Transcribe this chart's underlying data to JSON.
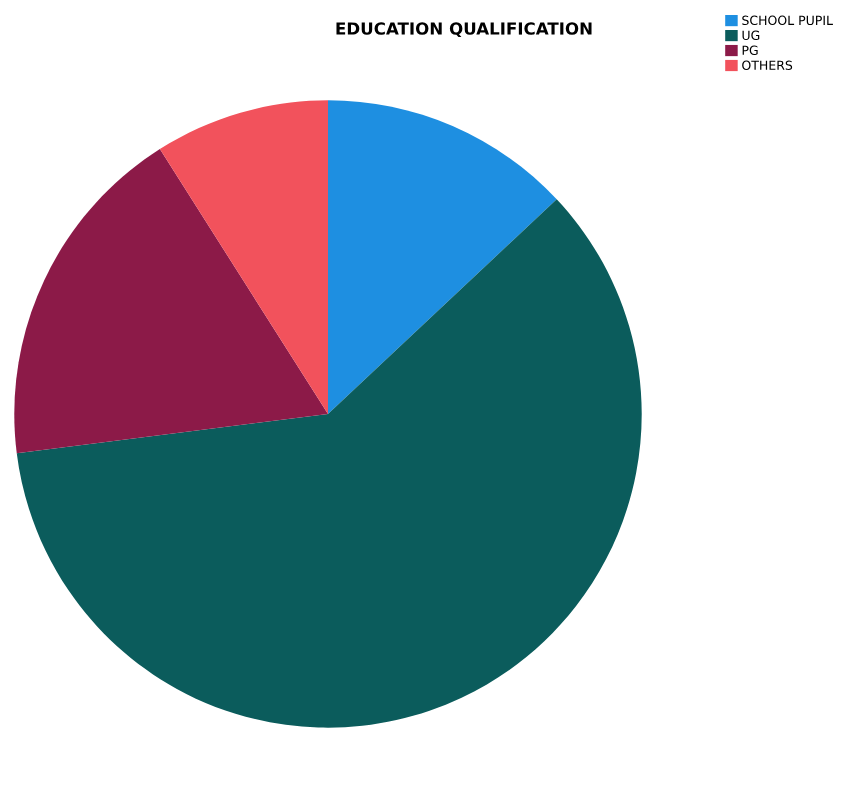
{
  "chart_data": {
    "type": "pie",
    "title": "EDUCATION QUALIFICATION",
    "categories": [
      "SCHOOL PUPIL",
      "UG",
      "PG",
      "OTHERS"
    ],
    "values": [
      13,
      60,
      18,
      9
    ],
    "colors": [
      "#1e8fe1",
      "#0b5c5c",
      "#8c1a48",
      "#f2525c"
    ],
    "legend": "top right"
  }
}
